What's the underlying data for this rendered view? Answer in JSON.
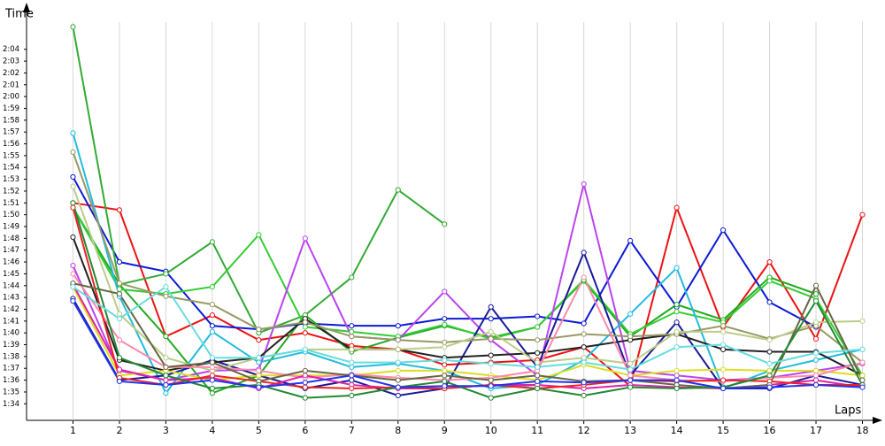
{
  "chart_data": {
    "type": "line",
    "x_label": "Laps",
    "y_label": "Time",
    "xlim": [
      0,
      18.2
    ],
    "ylim": [
      92.6,
      126.3
    ],
    "xticks": [
      1,
      2,
      3,
      4,
      5,
      6,
      7,
      8,
      9,
      10,
      11,
      12,
      13,
      14,
      15,
      16,
      17,
      18
    ],
    "yticks": [
      {
        "value": 94,
        "label": "1:34"
      },
      {
        "value": 95,
        "label": "1:35"
      },
      {
        "value": 96,
        "label": "1:36"
      },
      {
        "value": 97,
        "label": "1:37"
      },
      {
        "value": 98,
        "label": "1:38"
      },
      {
        "value": 99,
        "label": "1:39"
      },
      {
        "value": 100,
        "label": "1:40"
      },
      {
        "value": 101,
        "label": "1:41"
      },
      {
        "value": 102,
        "label": "1:42"
      },
      {
        "value": 103,
        "label": "1:43"
      },
      {
        "value": 104,
        "label": "1:44"
      },
      {
        "value": 105,
        "label": "1:45"
      },
      {
        "value": 106,
        "label": "1:46"
      },
      {
        "value": 107,
        "label": "1:47"
      },
      {
        "value": 108,
        "label": "1:48"
      },
      {
        "value": 109,
        "label": "1:49"
      },
      {
        "value": 110,
        "label": "1:50"
      },
      {
        "value": 111,
        "label": "1:51"
      },
      {
        "value": 112,
        "label": "1:52"
      },
      {
        "value": 113,
        "label": "1:53"
      },
      {
        "value": 114,
        "label": "1:54"
      },
      {
        "value": 115,
        "label": "1:55"
      },
      {
        "value": 116,
        "label": "1:56"
      },
      {
        "value": 117,
        "label": "1:57"
      },
      {
        "value": 118,
        "label": "1:58"
      },
      {
        "value": 119,
        "label": "1:59"
      },
      {
        "value": 120,
        "label": "2:00"
      },
      {
        "value": 121,
        "label": "2:01"
      },
      {
        "value": 122,
        "label": "2:02"
      },
      {
        "value": 123,
        "label": "2:03"
      },
      {
        "value": 124,
        "label": "2:04"
      }
    ],
    "grid": true,
    "x": [
      1,
      2,
      3,
      4,
      5,
      6,
      7,
      8,
      9,
      10,
      11,
      12,
      13,
      14,
      15,
      16,
      17,
      18
    ],
    "series": [
      {
        "color": "#ee1111",
        "values": [
          111.0,
          110.4,
          99.7,
          101.5,
          99.4,
          100.0,
          98.9,
          98.6,
          97.3,
          97.5,
          97.7,
          98.8,
          95.5,
          110.6,
          100.5,
          106.0,
          99.5,
          110.0
        ]
      },
      {
        "color": "#0a1ad6",
        "values": [
          113.2,
          106.0,
          105.2,
          100.6,
          100.3,
          100.8,
          100.6,
          100.6,
          101.2,
          101.2,
          101.4,
          100.8,
          107.8,
          102.2,
          108.7,
          102.6,
          100.5,
          null
        ]
      },
      {
        "color": "#22aa22",
        "values": [
          110.6,
          104.1,
          99.7,
          94.9,
          96.4,
          101.5,
          98.4,
          99.6,
          100.6,
          99.6,
          100.5,
          104.4,
          99.7,
          102.4,
          101.1,
          104.7,
          103.3,
          null
        ]
      },
      {
        "color": "#33aa33",
        "values": [
          125.9,
          104.1,
          105.0,
          107.7,
          100.0,
          101.5,
          104.7,
          112.1,
          109.2,
          null,
          null,
          null,
          null,
          null,
          null,
          null,
          null,
          null
        ]
      },
      {
        "color": "#33cc33",
        "values": [
          110.6,
          103.7,
          103.3,
          103.9,
          108.3,
          100.5,
          100.1,
          99.7,
          100.7,
          99.5,
          100.5,
          104.5,
          99.9,
          101.8,
          100.9,
          104.4,
          102.9,
          96.4
        ]
      },
      {
        "color": "#bb44ee",
        "values": [
          105.7,
          96.8,
          96.0,
          96.8,
          96.9,
          108.0,
          99.7,
          99.4,
          103.5,
          99.4,
          96.4,
          112.6,
          96.8,
          96.4,
          96.0,
          96.2,
          96.8,
          97.4
        ]
      },
      {
        "color": "#22bbdd",
        "values": [
          116.9,
          103.1,
          94.9,
          100.1,
          97.5,
          98.4,
          97.1,
          97.4,
          96.8,
          95.3,
          95.6,
          97.7,
          101.6,
          105.5,
          95.3,
          96.8,
          97.7,
          98.6
        ]
      },
      {
        "color": "#1a1a99",
        "values": [
          102.9,
          96.0,
          96.4,
          97.7,
          96.4,
          95.3,
          96.0,
          94.7,
          95.3,
          102.2,
          97.1,
          106.8,
          96.4,
          100.9,
          95.3,
          95.3,
          96.4,
          95.6
        ]
      },
      {
        "color": "#222222",
        "values": [
          108.1,
          97.7,
          96.8,
          97.5,
          97.9,
          101.2,
          98.6,
          98.6,
          97.9,
          98.1,
          98.3,
          98.8,
          99.4,
          99.9,
          98.6,
          98.4,
          98.4,
          96.4
        ]
      },
      {
        "color": "#999966",
        "values": [
          115.3,
          104.2,
          103.1,
          102.4,
          100.3,
          100.9,
          99.7,
          99.4,
          99.2,
          99.5,
          99.4,
          99.9,
          99.7,
          99.9,
          100.6,
          99.5,
          100.6,
          97.5
        ]
      },
      {
        "color": "#bbcc88",
        "values": [
          112.4,
          101.6,
          97.9,
          96.8,
          97.9,
          98.6,
          98.6,
          98.6,
          98.8,
          100.1,
          97.5,
          97.9,
          97.4,
          100.1,
          100.1,
          99.4,
          100.9,
          101.0
        ]
      },
      {
        "color": "#dddd22",
        "values": [
          103.9,
          96.4,
          96.8,
          96.0,
          96.4,
          96.4,
          96.4,
          96.8,
          96.8,
          96.4,
          96.0,
          97.3,
          96.4,
          96.8,
          96.9,
          96.8,
          96.8,
          96.4
        ]
      },
      {
        "color": "#ff88aa",
        "values": [
          105.0,
          99.4,
          97.1,
          97.1,
          96.8,
          96.2,
          96.5,
          96.2,
          96.0,
          96.2,
          96.8,
          104.7,
          96.4,
          96.0,
          95.9,
          96.2,
          96.4,
          97.5
        ]
      },
      {
        "color": "#dd22aa",
        "values": [
          104.1,
          96.9,
          96.0,
          96.2,
          95.3,
          96.4,
          95.6,
          95.3,
          95.3,
          95.6,
          95.6,
          95.3,
          95.6,
          95.4,
          95.3,
          95.6,
          96.0,
          95.4
        ]
      },
      {
        "color": "#ee2222",
        "values": [
          110.6,
          96.2,
          95.6,
          96.4,
          95.9,
          95.4,
          95.3,
          95.4,
          95.3,
          95.6,
          95.3,
          95.6,
          96.0,
          95.9,
          96.0,
          95.9,
          95.6,
          95.6
        ]
      },
      {
        "color": "#666644",
        "values": [
          104.2,
          103.3,
          97.1,
          97.5,
          95.9,
          96.8,
          96.4,
          96.0,
          96.4,
          96.0,
          96.4,
          95.9,
          96.0,
          95.6,
          95.3,
          95.6,
          104.0,
          96.0
        ]
      },
      {
        "color": "#228833",
        "values": [
          111.0,
          97.9,
          96.4,
          95.3,
          95.6,
          94.5,
          94.7,
          95.4,
          95.9,
          94.5,
          95.3,
          94.7,
          95.4,
          95.3,
          95.4,
          96.4,
          102.7,
          95.6
        ]
      },
      {
        "color": "#66dddd",
        "values": [
          103.9,
          101.2,
          103.9,
          97.9,
          97.9,
          98.6,
          97.5,
          97.5,
          97.7,
          97.4,
          97.1,
          97.5,
          96.9,
          98.8,
          99.0,
          97.4,
          98.3,
          98.6
        ]
      },
      {
        "color": "#2233ee",
        "values": [
          102.7,
          95.9,
          95.6,
          96.0,
          95.4,
          95.8,
          96.4,
          95.4,
          95.5,
          95.5,
          95.9,
          95.8,
          96.0,
          96.0,
          95.3,
          95.4,
          95.6,
          95.4
        ]
      }
    ]
  }
}
